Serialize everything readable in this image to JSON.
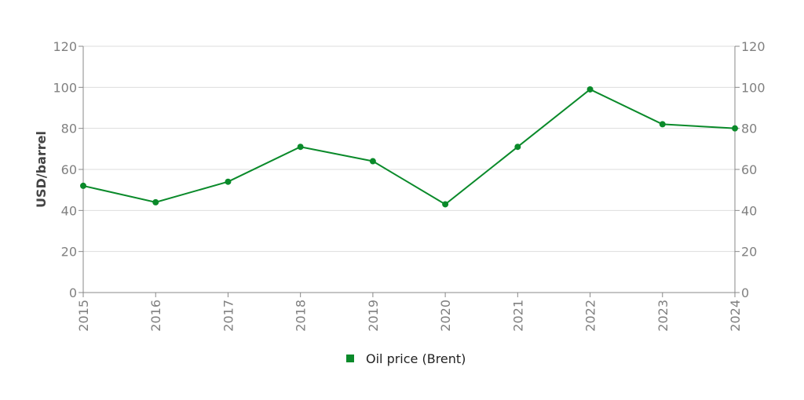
{
  "chart_data": {
    "type": "line",
    "title": "",
    "xlabel": "",
    "ylabel": "USD/barrel",
    "x": [
      "2015",
      "2016",
      "2017",
      "2018",
      "2019",
      "2020",
      "2021",
      "2022",
      "2023",
      "2024"
    ],
    "series": [
      {
        "name": "Oil price (Brent)",
        "values": [
          52,
          44,
          54,
          71,
          64,
          43,
          71,
          99,
          82,
          80
        ],
        "color": "#0a8a2a"
      }
    ],
    "ylim": [
      0,
      120
    ],
    "yticks": [
      0,
      20,
      40,
      60,
      80,
      100,
      120
    ],
    "right_axis": true,
    "grid": true,
    "legend_position": "bottom-center"
  }
}
